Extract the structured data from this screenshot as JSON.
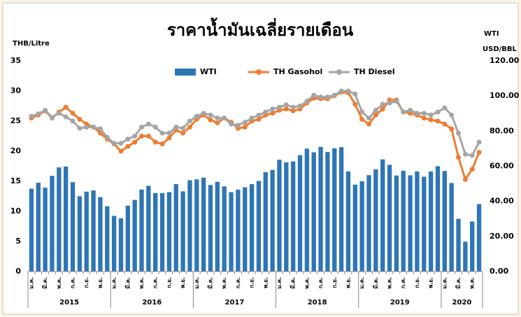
{
  "chart_data": {
    "type": "bar_line",
    "title": "ราคาน้ำมันเฉลี่ยรายเดือน",
    "y_label": "THB/Litre",
    "y2_label": "WTI",
    "y2_unit": "USD/BBL",
    "categories": [
      "ม.ค.",
      null,
      "มี.ค.",
      null,
      "พ.ค.",
      null,
      "ก.ค.",
      null,
      "ก.ย.",
      null,
      "พ.ย.",
      null,
      "ม.ค.",
      null,
      "มี.ค.",
      null,
      "พ.ค.",
      null,
      "ก.ค.",
      null,
      "ก.ย.",
      null,
      "พ.ย.",
      null,
      "ม.ค.",
      null,
      "มี.ค.",
      null,
      "พ.ค.",
      null,
      "ก.ค.",
      null,
      "ก.ย.",
      null,
      "พ.ย.",
      null,
      "ม.ค.",
      null,
      "มี.ค.",
      null,
      "พ.ค.",
      null,
      "ก.ค.",
      null,
      "ก.ย.",
      null,
      "พ.ย.",
      null,
      "ม.ค.",
      null,
      "มี.ค.",
      null,
      "พ.ค.",
      null,
      "ก.ค.",
      null,
      "ก.ย.",
      null,
      "พ.ย.",
      null,
      "ม.ค.",
      null,
      "มี.ค.",
      null,
      "พ.ค.",
      null
    ],
    "years": [
      "2015",
      "2016",
      "2017",
      "2018",
      "2019",
      "2020"
    ],
    "series": [
      {
        "name": "WTI",
        "type": "bar",
        "axis": "y2",
        "color": "#2E75B6",
        "values": [
          47.2,
          50.6,
          47.8,
          54.5,
          59.3,
          59.8,
          50.9,
          42.9,
          45.5,
          46.2,
          42.4,
          37.2,
          31.7,
          30.3,
          37.5,
          40.8,
          46.7,
          48.8,
          44.7,
          44.7,
          45.2,
          49.8,
          45.7,
          52.0,
          52.5,
          53.5,
          49.3,
          51.1,
          48.5,
          45.2,
          46.6,
          48.0,
          49.8,
          51.6,
          56.6,
          57.9,
          63.7,
          62.2,
          62.7,
          66.3,
          70.0,
          67.9,
          71.0,
          68.1,
          70.2,
          70.8,
          57.0,
          49.5,
          51.4,
          54.9,
          58.2,
          63.9,
          60.8,
          54.7,
          57.4,
          54.8,
          57.0,
          54.0,
          57.0,
          60.0,
          57.3,
          50.4,
          30.0,
          17.0,
          28.5,
          38.4
        ]
      },
      {
        "name": "TH Gasohol",
        "type": "line",
        "color": "#ED7D31",
        "values": [
          25.5,
          26.0,
          26.7,
          25.5,
          26.5,
          27.3,
          26.3,
          25.3,
          24.5,
          24.0,
          23.0,
          22.0,
          21.2,
          20.0,
          20.8,
          21.5,
          22.5,
          22.5,
          21.5,
          21.2,
          22.2,
          23.5,
          23.0,
          24.0,
          25.3,
          26.0,
          25.2,
          24.7,
          25.5,
          24.8,
          23.8,
          24.0,
          25.0,
          25.3,
          26.0,
          26.3,
          26.8,
          27.0,
          26.7,
          27.0,
          28.0,
          28.8,
          28.7,
          28.7,
          29.2,
          29.8,
          29.7,
          27.8,
          25.3,
          24.5,
          26.0,
          27.0,
          28.5,
          28.5,
          26.5,
          26.3,
          26.0,
          25.5,
          25.2,
          25.0,
          24.5,
          23.7,
          19.0,
          15.3,
          17.0,
          19.8
        ]
      },
      {
        "name": "TH Diesel",
        "type": "line",
        "color": "#A5A5A5",
        "values": [
          25.8,
          26.2,
          26.8,
          25.6,
          26.3,
          25.7,
          25.0,
          23.8,
          24.0,
          24.0,
          23.7,
          22.3,
          21.3,
          21.3,
          22.0,
          22.5,
          24.0,
          24.5,
          24.0,
          23.0,
          23.0,
          24.0,
          23.8,
          25.0,
          25.8,
          26.3,
          26.0,
          25.5,
          25.5,
          24.5,
          24.3,
          24.8,
          25.5,
          26.0,
          26.5,
          27.0,
          27.3,
          27.7,
          27.3,
          27.5,
          28.3,
          29.3,
          29.0,
          29.0,
          29.3,
          30.0,
          30.0,
          29.5,
          26.5,
          25.5,
          26.8,
          27.8,
          28.0,
          28.3,
          26.5,
          26.8,
          26.3,
          26.3,
          26.0,
          26.5,
          27.2,
          26.0,
          23.0,
          19.5,
          19.3,
          21.5
        ]
      }
    ],
    "ylim": [
      0,
      35
    ],
    "yticks": [
      0,
      5,
      10,
      15,
      20,
      25,
      30,
      35
    ],
    "y2lim": [
      0,
      120
    ],
    "y2ticks": [
      {
        "value": 0,
        "label": "0.00"
      },
      {
        "value": 20,
        "label": "20.00"
      },
      {
        "value": 40,
        "label": "40.00"
      },
      {
        "value": 60,
        "label": "60.00"
      },
      {
        "value": 80,
        "label": "80.00"
      },
      {
        "value": 100,
        "label": "100.00"
      },
      {
        "value": 120,
        "label": "120.00"
      }
    ],
    "grid": false,
    "legend": "top"
  }
}
